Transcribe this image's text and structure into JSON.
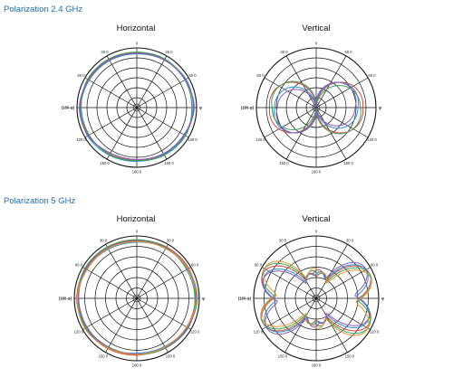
{
  "sections": [
    {
      "title": "Polarization 2.4 GHz",
      "plots": [
        {
          "title": "Horizontal"
        },
        {
          "title": "Vertical"
        }
      ]
    },
    {
      "title": "Polarization 5 GHz",
      "plots": [
        {
          "title": "Horizontal"
        },
        {
          "title": "Vertical"
        }
      ]
    }
  ],
  "polar_axes": {
    "angle_labels": [
      "0",
      "30 0",
      "60 0",
      "90",
      "120 0",
      "150 0",
      "180 0",
      "150 0",
      "120 0",
      "(180-φ)",
      "60 0",
      "30 0"
    ],
    "left_label": "(180-φ)",
    "right_label": "φ"
  },
  "colors": {
    "title": "#1a6fb5",
    "series": [
      "#d9483b",
      "#2b8fd6",
      "#3aa35a",
      "#8e5bb8",
      "#e3982c",
      "#1d7a7a"
    ],
    "grid": "#111111"
  },
  "chart_data": [
    {
      "type": "polar",
      "panel": "2.4 GHz Horizontal",
      "theta_deg": [
        0,
        30,
        60,
        90,
        120,
        150,
        180,
        210,
        240,
        270,
        300,
        330
      ],
      "rlim": [
        0,
        1
      ],
      "series": [
        {
          "values": [
            0.92,
            0.93,
            0.94,
            0.95,
            0.93,
            0.9,
            0.88,
            0.9,
            0.93,
            0.95,
            0.94,
            0.93
          ]
        },
        {
          "values": [
            0.9,
            0.92,
            0.95,
            0.94,
            0.92,
            0.91,
            0.9,
            0.92,
            0.95,
            0.94,
            0.92,
            0.91
          ]
        },
        {
          "values": [
            0.93,
            0.94,
            0.93,
            0.92,
            0.94,
            0.92,
            0.89,
            0.91,
            0.92,
            0.93,
            0.95,
            0.94
          ]
        },
        {
          "values": [
            0.91,
            0.92,
            0.93,
            0.96,
            0.91,
            0.89,
            0.87,
            0.88,
            0.94,
            0.96,
            0.93,
            0.92
          ]
        }
      ]
    },
    {
      "type": "polar",
      "panel": "2.4 GHz Vertical",
      "pattern": "figure-eight",
      "rlim": [
        0,
        1
      ],
      "series": [
        {
          "lobe": 0.78,
          "tilt": 0
        },
        {
          "lobe": 0.7,
          "tilt": 6
        },
        {
          "lobe": 0.74,
          "tilt": -5
        },
        {
          "lobe": 0.66,
          "tilt": 10
        }
      ]
    },
    {
      "type": "polar",
      "panel": "5 GHz Horizontal",
      "theta_deg": [
        0,
        30,
        60,
        90,
        120,
        150,
        180,
        210,
        240,
        270,
        300,
        330
      ],
      "rlim": [
        0,
        1
      ],
      "series": [
        {
          "values": [
            0.93,
            0.95,
            0.96,
            0.94,
            0.92,
            0.9,
            0.91,
            0.93,
            0.95,
            0.96,
            0.95,
            0.94
          ]
        },
        {
          "values": [
            0.9,
            0.93,
            0.95,
            0.97,
            0.93,
            0.89,
            0.88,
            0.92,
            0.94,
            0.95,
            0.93,
            0.91
          ]
        },
        {
          "values": [
            0.94,
            0.94,
            0.92,
            0.93,
            0.95,
            0.92,
            0.9,
            0.9,
            0.93,
            0.94,
            0.96,
            0.95
          ]
        },
        {
          "values": [
            0.92,
            0.93,
            0.94,
            0.95,
            0.94,
            0.91,
            0.89,
            0.91,
            0.92,
            0.93,
            0.94,
            0.93
          ]
        },
        {
          "values": [
            0.91,
            0.92,
            0.95,
            0.96,
            0.92,
            0.9,
            0.9,
            0.92,
            0.96,
            0.95,
            0.92,
            0.92
          ]
        }
      ]
    },
    {
      "type": "polar",
      "panel": "5 GHz Vertical",
      "pattern": "multi-lobe",
      "rlim": [
        0,
        1
      ],
      "series": [
        {
          "lobe": 0.8,
          "tilt": 0
        },
        {
          "lobe": 0.74,
          "tilt": 4
        },
        {
          "lobe": 0.77,
          "tilt": -4
        },
        {
          "lobe": 0.7,
          "tilt": 8
        },
        {
          "lobe": 0.72,
          "tilt": -8
        }
      ]
    }
  ]
}
